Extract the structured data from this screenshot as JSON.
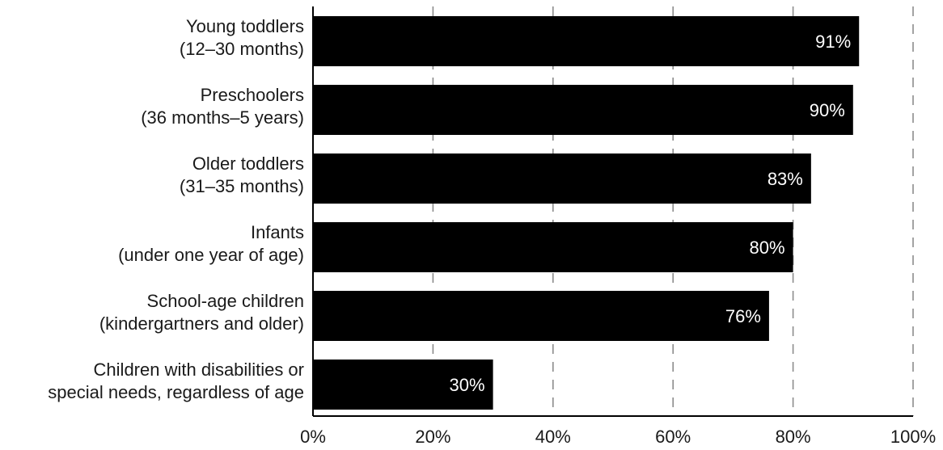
{
  "chart_data": {
    "type": "bar",
    "orientation": "horizontal",
    "title": "",
    "xlabel": "",
    "ylabel": "",
    "xlim": [
      0,
      100
    ],
    "grid": true,
    "categories": [
      [
        "Young toddlers",
        "(12–30 months)"
      ],
      [
        "Preschoolers",
        "(36 months–5 years)"
      ],
      [
        "Older toddlers",
        "(31–35 months)"
      ],
      [
        "Infants",
        "(under one year of age)"
      ],
      [
        "School-age children",
        "(kindergartners and older)"
      ],
      [
        "Children with disabilities or",
        "special needs, regardless of age"
      ]
    ],
    "values": [
      91,
      90,
      83,
      80,
      76,
      30
    ],
    "data_labels": [
      "91%",
      "90%",
      "83%",
      "80%",
      "76%",
      "30%"
    ],
    "x_ticks": [
      0,
      20,
      40,
      60,
      80,
      100
    ],
    "x_tick_labels": [
      "0%",
      "20%",
      "40%",
      "60%",
      "80%",
      "100%"
    ],
    "bar_color": "#000000",
    "grid_color": "#8c8c8c"
  }
}
